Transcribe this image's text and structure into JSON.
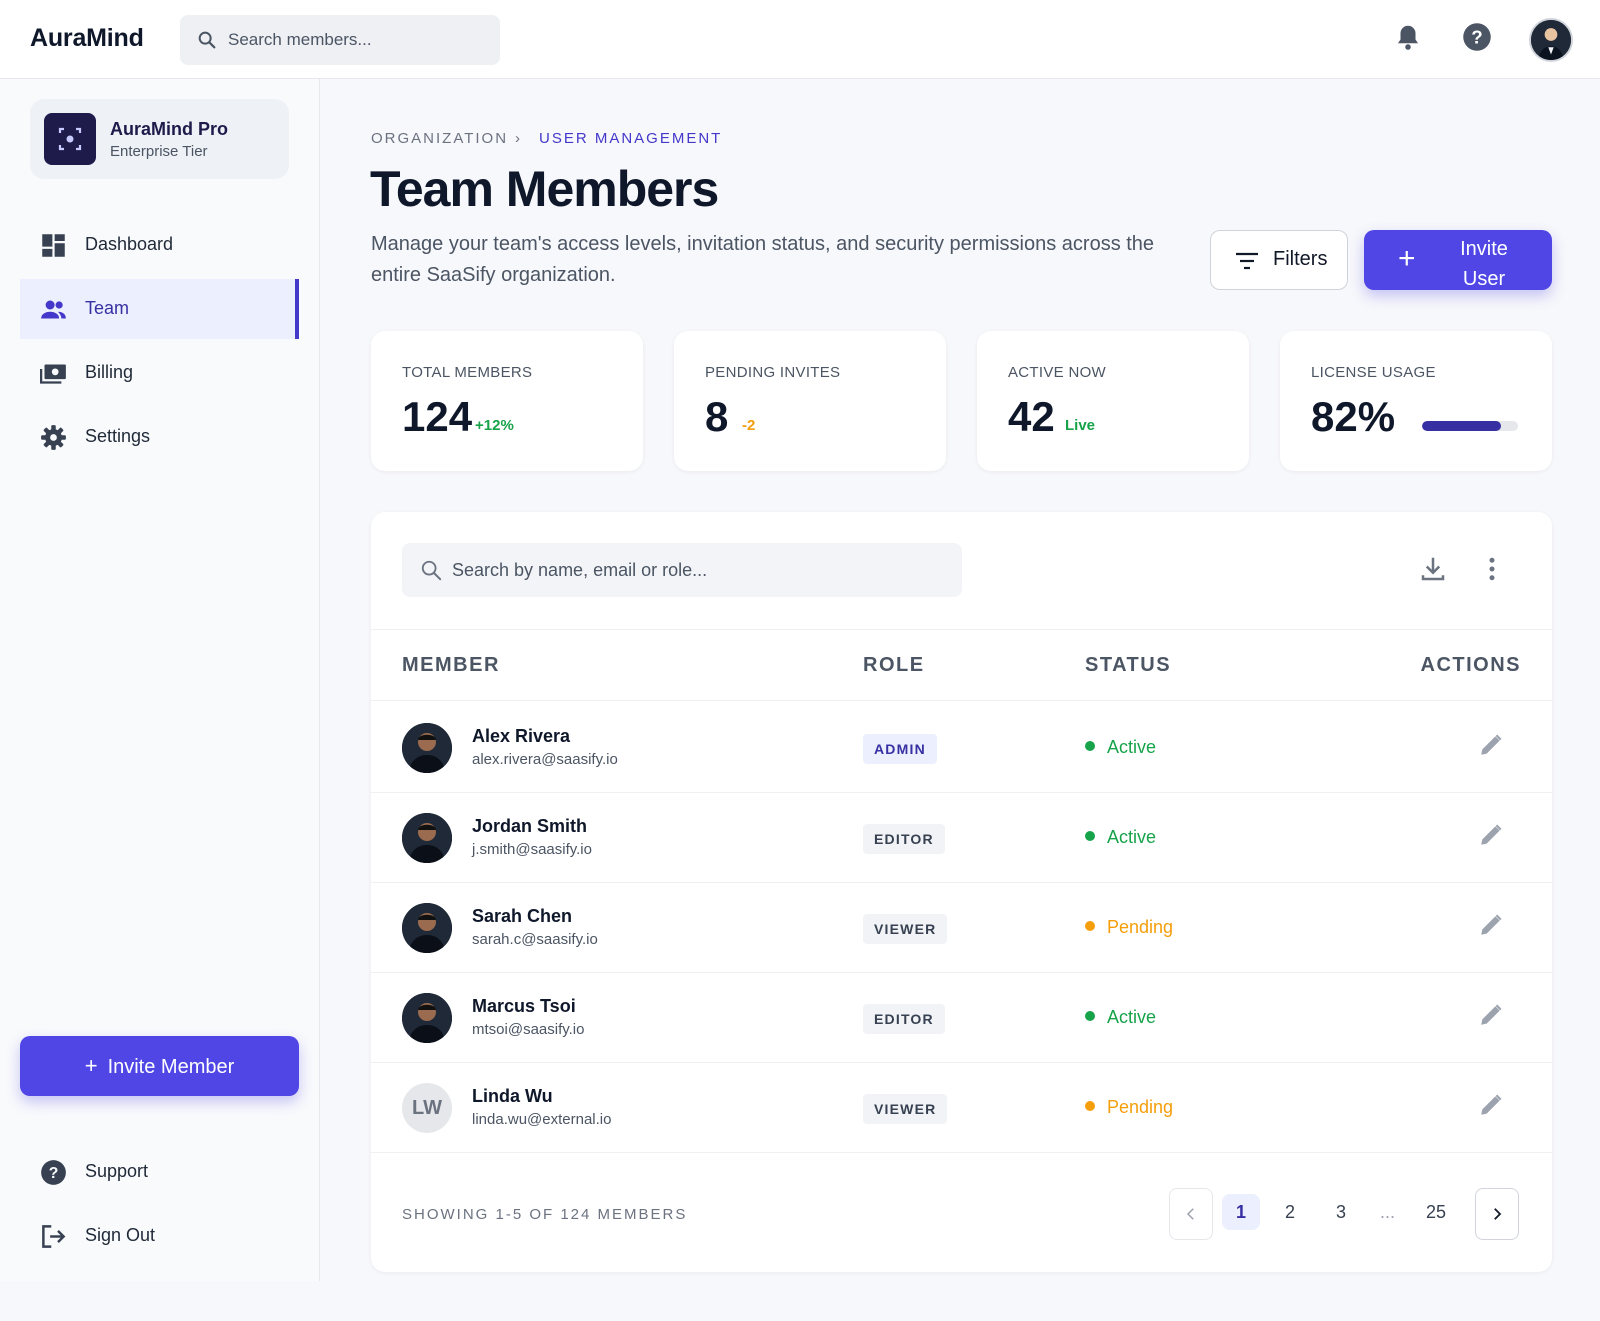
{
  "header": {
    "brand": "AuraMind",
    "search_placeholder": "Search members..."
  },
  "sidebar": {
    "org_name": "AuraMind Pro",
    "org_tier": "Enterprise Tier",
    "nav": [
      {
        "label": "Dashboard",
        "icon": "dashboard-icon"
      },
      {
        "label": "Team",
        "icon": "team-icon",
        "active": true
      },
      {
        "label": "Billing",
        "icon": "billing-icon"
      },
      {
        "label": "Settings",
        "icon": "gear-icon"
      }
    ],
    "invite_label": "Invite Member",
    "footer": [
      {
        "label": "Support",
        "icon": "help-icon"
      },
      {
        "label": "Sign Out",
        "icon": "sign-out-icon"
      }
    ]
  },
  "breadcrumb": {
    "parent": "ORGANIZATION",
    "current": "USER MANAGEMENT"
  },
  "page": {
    "title": "Team Members",
    "description": "Manage your team's access levels, invitation status, and security permissions across the entire SaaSify organization.",
    "filters_label": "Filters",
    "invite_label": "Invite User"
  },
  "stats": [
    {
      "label": "TOTAL MEMBERS",
      "value": "124",
      "delta": "+12%",
      "delta_color": "#16a34a"
    },
    {
      "label": "PENDING INVITES",
      "value": "8",
      "delta": "-2",
      "delta_color": "#f59e0b"
    },
    {
      "label": "ACTIVE NOW",
      "value": "42",
      "delta": "Live",
      "delta_color": "#16a34a"
    },
    {
      "label": "LICENSE USAGE",
      "value": "82%",
      "progress": 0.82
    }
  ],
  "table": {
    "search_placeholder": "Search by name, email or role...",
    "columns": [
      "MEMBER",
      "ROLE",
      "STATUS",
      "ACTIONS"
    ],
    "rows": [
      {
        "name": "Alex Rivera",
        "email": "alex.rivera@saasify.io",
        "role": "ADMIN",
        "status": "Active"
      },
      {
        "name": "Jordan Smith",
        "email": "j.smith@saasify.io",
        "role": "EDITOR",
        "status": "Active"
      },
      {
        "name": "Sarah Chen",
        "email": "sarah.c@saasify.io",
        "role": "VIEWER",
        "status": "Pending"
      },
      {
        "name": "Marcus Tsoi",
        "email": "mtsoi@saasify.io",
        "role": "EDITOR",
        "status": "Active"
      },
      {
        "name": "Linda Wu",
        "email": "linda.wu@external.io",
        "role": "VIEWER",
        "status": "Pending",
        "initials": "LW"
      }
    ],
    "status_colors": {
      "Active": "#16a34a",
      "Pending": "#f59e0b"
    },
    "showing": "SHOWING 1-5 OF 124 MEMBERS",
    "pages": [
      "1",
      "2",
      "3",
      "25"
    ],
    "ellipsis": "...",
    "current_page": "1"
  }
}
